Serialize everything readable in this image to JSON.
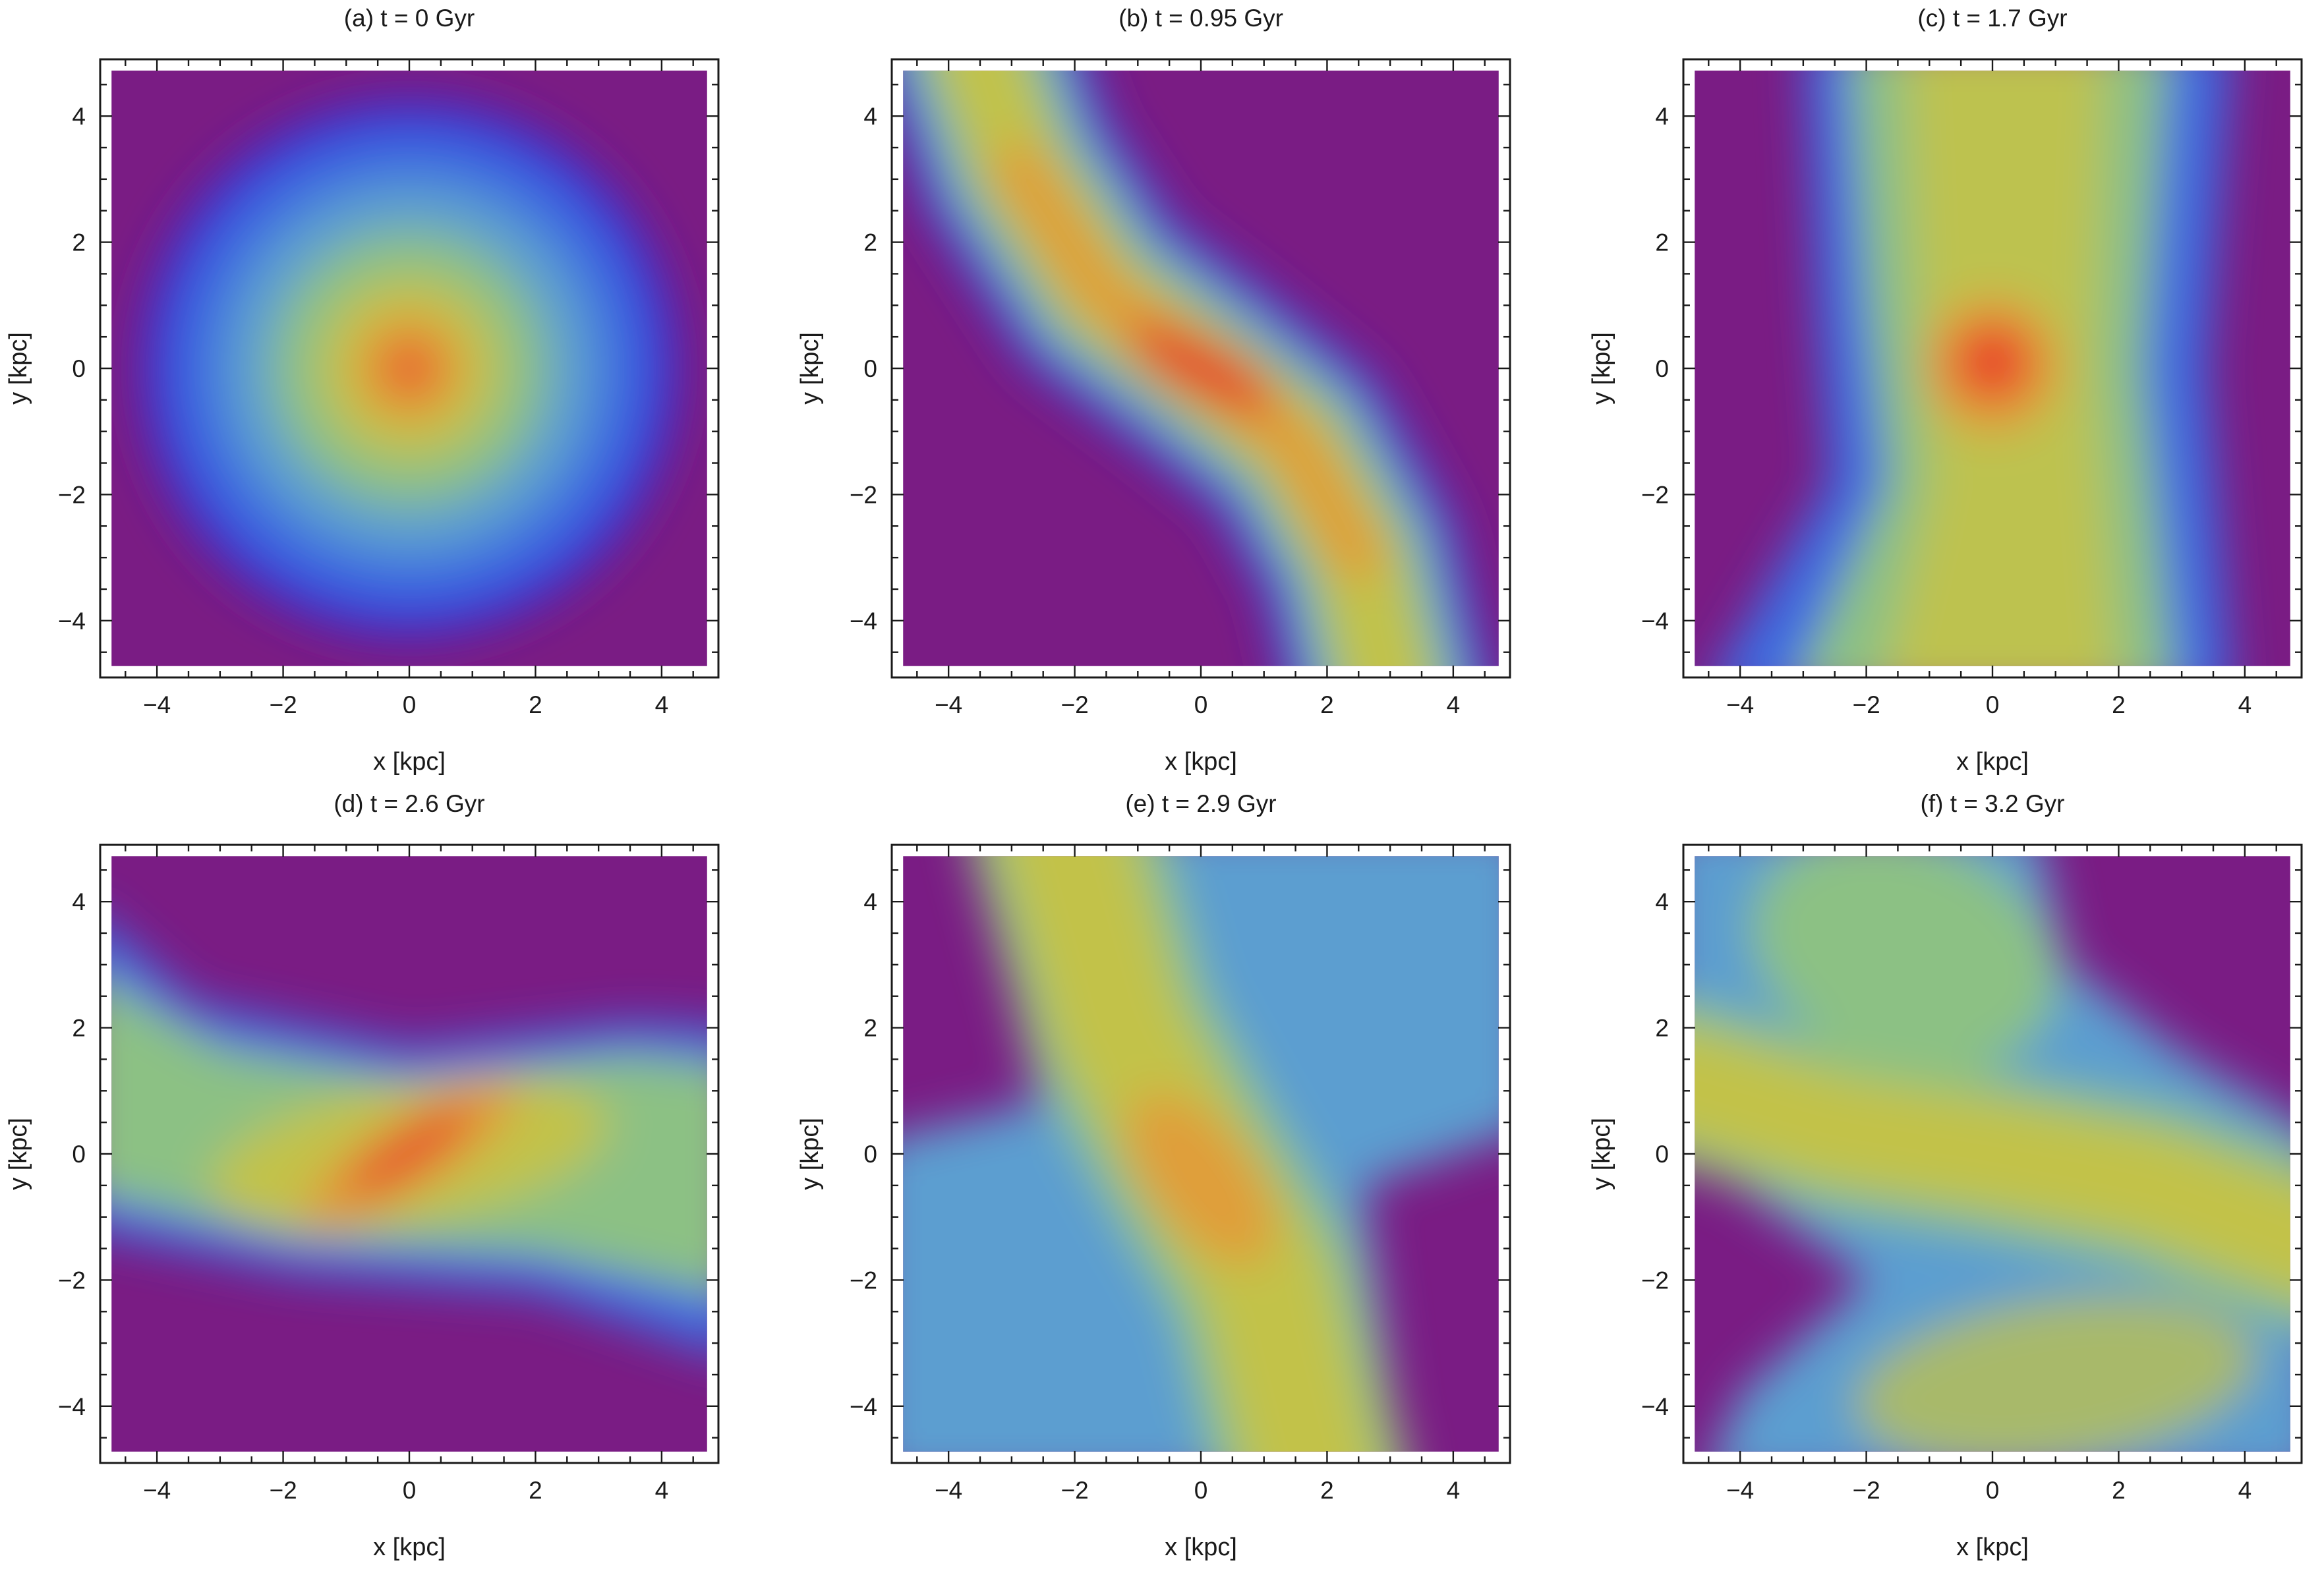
{
  "colors": {
    "low": "#7a1c84",
    "ramp": [
      "#7a1c84",
      "#3a33d6",
      "#3c6ae0",
      "#5b9ed0",
      "#8cc184",
      "#c2c24a",
      "#e39a38",
      "#e8402a"
    ]
  },
  "chart_data": [
    {
      "type": "heatmap",
      "panel": "(a)",
      "title": "(a)  t = 0 Gyr",
      "xlabel": "x [kpc]",
      "ylabel": "y [kpc]",
      "xlim": [
        -4.9,
        4.9
      ],
      "ylim": [
        -4.9,
        4.9
      ],
      "xticks": [
        -4,
        -2,
        0,
        2,
        4
      ],
      "yticks": [
        -4,
        -2,
        0,
        2,
        4
      ],
      "xtick_labels": [
        "−4",
        "−2",
        "0",
        "2",
        "4"
      ],
      "ytick_labels": [
        "−4",
        "−2",
        "0",
        "2",
        "4"
      ],
      "morphology": "circular disk centred at the origin, peak at (0, 0), radius about 4 kpc"
    },
    {
      "type": "heatmap",
      "panel": "(b)",
      "title": "(b)  t = 0.95 Gyr",
      "xlabel": "x [kpc]",
      "ylabel": "y [kpc]",
      "xlim": [
        -4.9,
        4.9
      ],
      "ylim": [
        -4.9,
        4.9
      ],
      "xticks": [
        -4,
        -2,
        0,
        2,
        4
      ],
      "yticks": [
        -4,
        -2,
        0,
        2,
        4
      ],
      "xtick_labels": [
        "−4",
        "−2",
        "0",
        "2",
        "4"
      ],
      "ytick_labels": [
        "−4",
        "−2",
        "0",
        "2",
        "4"
      ],
      "morphology": "S-shaped band running from upper left to lower right, peak near (0, 0)"
    },
    {
      "type": "heatmap",
      "panel": "(c)",
      "title": "(c)  t = 1.7 Gyr",
      "xlabel": "x [kpc]",
      "ylabel": "y [kpc]",
      "xlim": [
        -4.9,
        4.9
      ],
      "ylim": [
        -4.9,
        4.9
      ],
      "xticks": [
        -4,
        -2,
        0,
        2,
        4
      ],
      "yticks": [
        -4,
        -2,
        0,
        2,
        4
      ],
      "xtick_labels": [
        "−4",
        "−2",
        "0",
        "2",
        "4"
      ],
      "ytick_labels": [
        "−4",
        "−2",
        "0",
        "2",
        "4"
      ],
      "morphology": "compact core at (0, 0) within a broad vertical band from x ≈ −2.5 to 3"
    },
    {
      "type": "heatmap",
      "panel": "(d)",
      "title": "(d)  t = 2.6 Gyr",
      "xlabel": "x [kpc]",
      "ylabel": "y [kpc]",
      "xlim": [
        -4.9,
        4.9
      ],
      "ylim": [
        -4.9,
        4.9
      ],
      "xticks": [
        -4,
        -2,
        0,
        2,
        4
      ],
      "yticks": [
        -4,
        -2,
        0,
        2,
        4
      ],
      "xtick_labels": [
        "−4",
        "−2",
        "0",
        "2",
        "4"
      ],
      "ytick_labels": [
        "−4",
        "−2",
        "0",
        "2",
        "4"
      ],
      "morphology": "horizontal band from y ≈ −2 to 2 with a tilted elongated core through the origin"
    },
    {
      "type": "heatmap",
      "panel": "(e)",
      "title": "(e)  t = 2.9 Gyr",
      "xlabel": "x [kpc]",
      "ylabel": "y [kpc]",
      "xlim": [
        -4.9,
        4.9
      ],
      "ylim": [
        -4.9,
        4.9
      ],
      "xticks": [
        -4,
        -2,
        0,
        2,
        4
      ],
      "yticks": [
        -4,
        -2,
        0,
        2,
        4
      ],
      "xtick_labels": [
        "−4",
        "−2",
        "0",
        "2",
        "4"
      ],
      "ytick_labels": [
        "−4",
        "−2",
        "0",
        "2",
        "4"
      ],
      "morphology": "widespread emission with an inclined band from upper left to lower right"
    },
    {
      "type": "heatmap",
      "panel": "(f)",
      "title": "(f)  t = 3.2 Gyr",
      "xlabel": "x [kpc]",
      "ylabel": "y [kpc]",
      "xlim": [
        -4.9,
        4.9
      ],
      "ylim": [
        -4.9,
        4.9
      ],
      "xticks": [
        -4,
        -2,
        0,
        2,
        4
      ],
      "yticks": [
        -4,
        -2,
        0,
        2,
        4
      ],
      "xtick_labels": [
        "−4",
        "−2",
        "0",
        "2",
        "4"
      ],
      "ytick_labels": [
        "−4",
        "−2",
        "0",
        "2",
        "4"
      ],
      "morphology": "broad emission with a diagonal band through the centre and empty regions at left and upper right"
    }
  ]
}
